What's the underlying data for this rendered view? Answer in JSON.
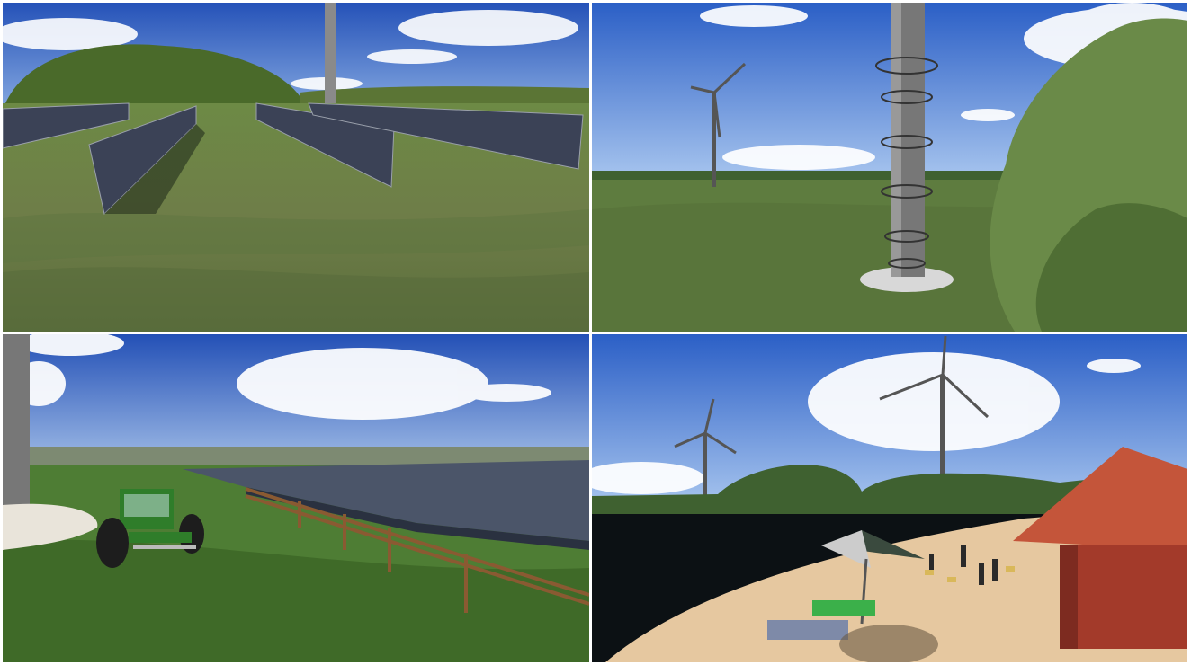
{
  "panels": [
    {
      "scene": "solar-vertical-panels-field"
    },
    {
      "scene": "wind-turbine-observation-tower"
    },
    {
      "scene": "tractor-agrivoltaics"
    },
    {
      "scene": "lake-beach-turbines"
    }
  ],
  "colors": {
    "sky_top": "#2c5fc4",
    "sky_bottom": "#8fb3e6",
    "grass": "#5f7a3e",
    "grass_dark": "#3f5a2a",
    "solar": "#3b4256",
    "tractor": "#2f7d2a",
    "roof": "#c4553a",
    "sand": "#e6c8a0",
    "water": "#0c1114"
  }
}
